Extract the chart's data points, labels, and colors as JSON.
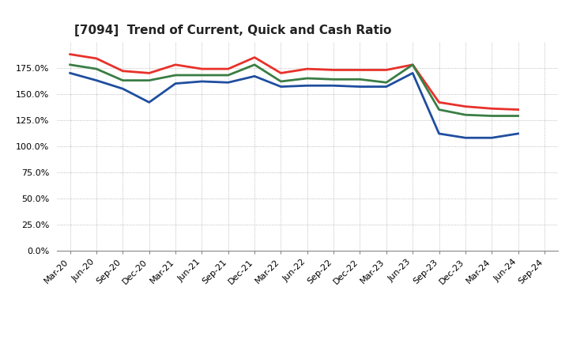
{
  "title": "[7094]  Trend of Current, Quick and Cash Ratio",
  "labels": [
    "Mar-20",
    "Jun-20",
    "Sep-20",
    "Dec-20",
    "Mar-21",
    "Jun-21",
    "Sep-21",
    "Dec-21",
    "Mar-22",
    "Jun-22",
    "Sep-22",
    "Dec-22",
    "Mar-23",
    "Jun-23",
    "Sep-23",
    "Dec-23",
    "Mar-24",
    "Jun-24",
    "Sep-24"
  ],
  "current_ratio": [
    188,
    184,
    172,
    170,
    178,
    174,
    174,
    185,
    170,
    174,
    173,
    173,
    173,
    178,
    142,
    138,
    136,
    135,
    null
  ],
  "quick_ratio": [
    178,
    174,
    163,
    163,
    168,
    168,
    168,
    178,
    162,
    165,
    164,
    164,
    161,
    178,
    135,
    130,
    129,
    129,
    null
  ],
  "cash_ratio": [
    170,
    163,
    155,
    142,
    160,
    162,
    161,
    167,
    157,
    158,
    158,
    157,
    157,
    170,
    112,
    108,
    108,
    112,
    null
  ],
  "current_color": "#e8312a",
  "quick_color": "#3a7d44",
  "cash_color": "#1f4e9f",
  "ylim": [
    0,
    200
  ],
  "yticks": [
    0,
    25,
    50,
    75,
    100,
    125,
    150,
    175
  ],
  "background_color": "#ffffff",
  "grid_color": "#aaaaaa",
  "linewidth": 2.0,
  "title_fontsize": 11,
  "tick_fontsize": 8,
  "legend_fontsize": 9
}
